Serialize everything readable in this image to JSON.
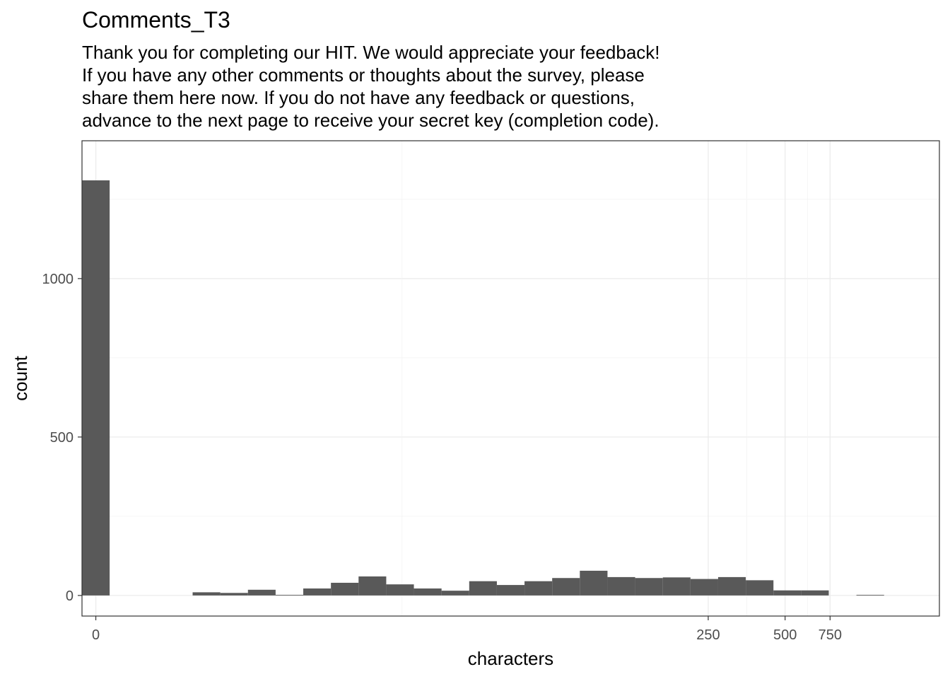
{
  "chart_data": {
    "type": "bar",
    "title": "Comments_T3",
    "subtitle_lines": [
      "Thank you for completing our HIT. We would appreciate your feedback!",
      "If you have any other comments or thoughts about the survey, please",
      "share them here now. If you do not have any feedback or questions,",
      "advance to the next page to receive your secret key (completion code)."
    ],
    "xlabel": "characters",
    "ylabel": "count",
    "x_scale": "pseudo-log",
    "x_ticks": [
      0,
      250,
      500,
      750
    ],
    "y_ticks": [
      0,
      500,
      1000
    ],
    "ylim": [
      -65,
      1435
    ],
    "grid": true,
    "bar_color": "#595959",
    "bin_index_range": [
      -0.5,
      30.5
    ],
    "values": [
      1310,
      0,
      0,
      0,
      10,
      8,
      18,
      2,
      22,
      40,
      60,
      35,
      22,
      15,
      45,
      33,
      45,
      55,
      78,
      58,
      55,
      57,
      52,
      58,
      48,
      16,
      16,
      0,
      2,
      0
    ]
  }
}
